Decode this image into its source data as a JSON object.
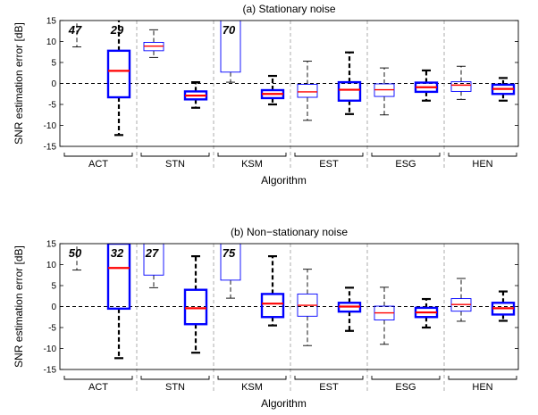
{
  "chart_data": [
    {
      "type": "boxplot",
      "title": "(a) Stationary noise",
      "xlabel": "Algorithm",
      "ylabel": "SNR estimation error [dB]",
      "ylim": [
        -15,
        15
      ],
      "yticks": [
        -15,
        -10,
        -5,
        0,
        5,
        10,
        15
      ],
      "categories": [
        "ACT",
        "STN",
        "KSM",
        "EST",
        "ESG",
        "HEN"
      ],
      "reference_line": 0,
      "series_styles": [
        {
          "box_color": "#0000ff",
          "median_color": "#ff0000",
          "whisker_color": "#000000",
          "bold": false
        },
        {
          "box_color": "#0000ff",
          "median_color": "#ff0000",
          "whisker_color": "#000000",
          "bold": true
        }
      ],
      "boxes": [
        {
          "category": "ACT",
          "series": 0,
          "offscale_label": "47",
          "whislo": 8.7,
          "q1": null,
          "med": null,
          "q3": null,
          "whishi": null
        },
        {
          "category": "ACT",
          "series": 1,
          "offscale_label": "29",
          "whislo": -12.3,
          "q1": -3.3,
          "med": 3.0,
          "q3": 7.8,
          "whishi": 15
        },
        {
          "category": "STN",
          "series": 0,
          "whislo": 6.2,
          "q1": 7.8,
          "med": 8.9,
          "q3": 9.8,
          "whishi": 12.8
        },
        {
          "category": "STN",
          "series": 1,
          "whislo": -5.8,
          "q1": -3.8,
          "med": -2.9,
          "q3": -1.9,
          "whishi": 0.3
        },
        {
          "category": "KSM",
          "series": 0,
          "offscale_label": "70",
          "whislo": 0.3,
          "q1": 2.7,
          "med": null,
          "q3": 15,
          "whishi": null
        },
        {
          "category": "KSM",
          "series": 1,
          "whislo": -5.0,
          "q1": -3.5,
          "med": -2.5,
          "q3": -1.6,
          "whishi": 1.8
        },
        {
          "category": "EST",
          "series": 0,
          "whislo": -8.8,
          "q1": -3.3,
          "med": -2.0,
          "q3": -0.2,
          "whishi": 5.3
        },
        {
          "category": "EST",
          "series": 1,
          "whislo": -7.3,
          "q1": -4.1,
          "med": -1.5,
          "q3": 0.3,
          "whishi": 7.4
        },
        {
          "category": "ESG",
          "series": 0,
          "whislo": -7.5,
          "q1": -3.1,
          "med": -1.5,
          "q3": -0.1,
          "whishi": 3.7
        },
        {
          "category": "ESG",
          "series": 1,
          "whislo": -4.1,
          "q1": -2.0,
          "med": -0.9,
          "q3": 0.2,
          "whishi": 3.1
        },
        {
          "category": "HEN",
          "series": 0,
          "whislo": -3.8,
          "q1": -1.9,
          "med": -0.4,
          "q3": 0.4,
          "whishi": 4.1
        },
        {
          "category": "HEN",
          "series": 1,
          "whislo": -4.1,
          "q1": -2.5,
          "med": -1.3,
          "q3": -0.3,
          "whishi": 1.3
        }
      ]
    },
    {
      "type": "boxplot",
      "title": "(b) Non−stationary noise",
      "xlabel": "Algorithm",
      "ylabel": "SNR estimation error [dB]",
      "ylim": [
        -15,
        15
      ],
      "yticks": [
        -15,
        -10,
        -5,
        0,
        5,
        10,
        15
      ],
      "categories": [
        "ACT",
        "STN",
        "KSM",
        "EST",
        "ESG",
        "HEN"
      ],
      "reference_line": 0,
      "series_styles": [
        {
          "box_color": "#0000ff",
          "median_color": "#ff0000",
          "whisker_color": "#000000",
          "bold": false
        },
        {
          "box_color": "#0000ff",
          "median_color": "#ff0000",
          "whisker_color": "#000000",
          "bold": true
        }
      ],
      "boxes": [
        {
          "category": "ACT",
          "series": 0,
          "offscale_label": "50",
          "whislo": 8.7,
          "q1": null,
          "med": null,
          "q3": null,
          "whishi": null
        },
        {
          "category": "ACT",
          "series": 1,
          "offscale_label": "32",
          "whislo": -12.3,
          "q1": -0.5,
          "med": 9.2,
          "q3": 15,
          "whishi": null
        },
        {
          "category": "STN",
          "series": 0,
          "offscale_label": "27",
          "whislo": 4.5,
          "q1": 7.5,
          "med": null,
          "q3": 15,
          "whishi": null
        },
        {
          "category": "STN",
          "series": 1,
          "whislo": -11.0,
          "q1": -4.2,
          "med": -0.4,
          "q3": 4.0,
          "whishi": 12.0
        },
        {
          "category": "KSM",
          "series": 0,
          "offscale_label": "75",
          "whislo": 2.0,
          "q1": 6.3,
          "med": null,
          "q3": 15,
          "whishi": null
        },
        {
          "category": "KSM",
          "series": 1,
          "whislo": -4.5,
          "q1": -2.5,
          "med": 0.7,
          "q3": 3.0,
          "whishi": 12.0
        },
        {
          "category": "EST",
          "series": 0,
          "whislo": -9.3,
          "q1": -2.3,
          "med": 0.3,
          "q3": 3.0,
          "whishi": 8.9
        },
        {
          "category": "EST",
          "series": 1,
          "whislo": -5.8,
          "q1": -1.2,
          "med": 0.0,
          "q3": 0.9,
          "whishi": 4.5
        },
        {
          "category": "ESG",
          "series": 0,
          "whislo": -9.0,
          "q1": -3.2,
          "med": -1.5,
          "q3": 0.1,
          "whishi": 4.6
        },
        {
          "category": "ESG",
          "series": 1,
          "whislo": -5.0,
          "q1": -2.5,
          "med": -1.4,
          "q3": -0.3,
          "whishi": 1.8
        },
        {
          "category": "HEN",
          "series": 0,
          "whislo": -3.5,
          "q1": -1.1,
          "med": 0.5,
          "q3": 1.9,
          "whishi": 6.7
        },
        {
          "category": "HEN",
          "series": 1,
          "whislo": -3.4,
          "q1": -1.9,
          "med": -0.4,
          "q3": 0.9,
          "whishi": 3.6
        }
      ]
    }
  ]
}
